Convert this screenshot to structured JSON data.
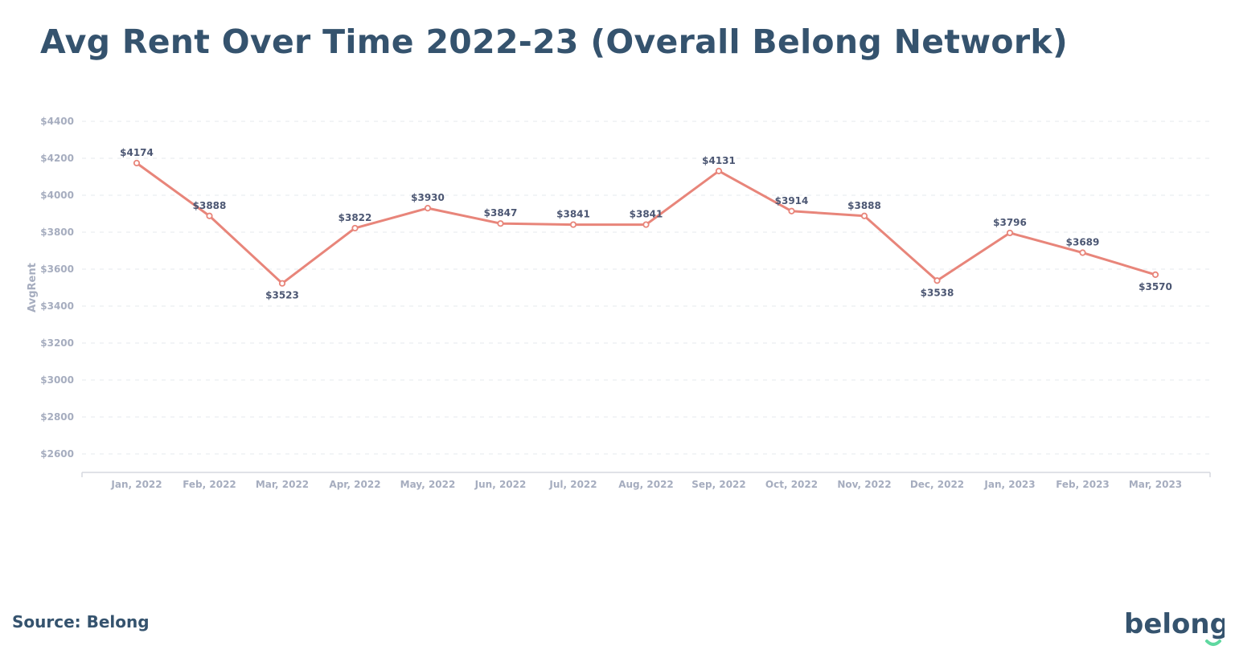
{
  "title": "Avg Rent Over Time 2022-23 (Overall Belong Network)",
  "source": "Source: Belong",
  "logo_text": "belong",
  "colors": {
    "title": "#35536e",
    "line": "#e8857a",
    "logo_smile": "#5fd8a0"
  },
  "chart_data": {
    "type": "line",
    "title": "Avg Rent Over Time 2022-23 (Overall Belong Network)",
    "xlabel": "",
    "ylabel": "AvgRent",
    "ylim": [
      2500,
      4400
    ],
    "yticks": [
      2600,
      2800,
      3000,
      3200,
      3400,
      3600,
      3800,
      4000,
      4200,
      4400
    ],
    "ytick_prefix": "$",
    "grid": true,
    "categories": [
      "Jan, 2022",
      "Feb, 2022",
      "Mar, 2022",
      "Apr, 2022",
      "May, 2022",
      "Jun, 2022",
      "Jul, 2022",
      "Aug, 2022",
      "Sep, 2022",
      "Oct, 2022",
      "Nov, 2022",
      "Dec, 2022",
      "Jan, 2023",
      "Feb, 2023",
      "Mar, 2023"
    ],
    "values": [
      4174,
      3888,
      3523,
      3822,
      3930,
      3847,
      3841,
      3841,
      4131,
      3914,
      3888,
      3538,
      3796,
      3689,
      3570
    ],
    "data_labels": [
      "$4174",
      "$3888",
      "$3523",
      "$3822",
      "$3930",
      "$3847",
      "$3841",
      "$3841",
      "$4131",
      "$3914",
      "$3888",
      "$3538",
      "$3796",
      "$3689",
      "$3570"
    ],
    "label_below": [
      false,
      false,
      true,
      false,
      false,
      false,
      false,
      false,
      false,
      false,
      false,
      true,
      false,
      false,
      true
    ]
  }
}
